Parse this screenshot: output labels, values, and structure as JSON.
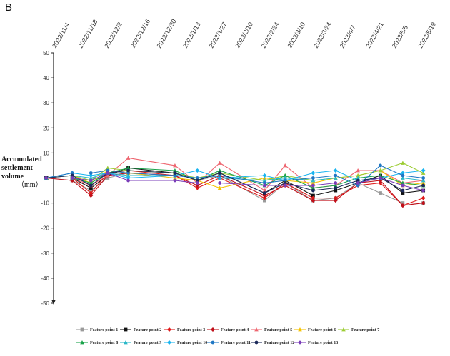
{
  "figure": {
    "panel_letter": "B",
    "ylabel_line1": "Accumulated",
    "ylabel_line2": "settlement volume",
    "ylabel_unit": "（mm）"
  },
  "chart_data": {
    "type": "line",
    "title": "",
    "xlabel": "",
    "ylabel": "Accumulated settlement volume (mm)",
    "ylim": [
      -50,
      50
    ],
    "yticks": [
      50,
      40,
      30,
      20,
      10,
      0,
      -10,
      -20,
      -30,
      -40,
      -50
    ],
    "grid": false,
    "legend_position": "bottom",
    "tick_labels": [
      "2022/11/4",
      "2022/11/18",
      "2022/12/2",
      "2022/12/16",
      "2022/12/30",
      "2023/1/13",
      "2023/1/27",
      "2023/2/10",
      "2023/2/24",
      "2023/3/10",
      "2023/3/24",
      "2023/4/7",
      "2023/4/21",
      "2023/5/5",
      "2023/5/19"
    ],
    "x_range": [
      "2022-11-04",
      "2023-06-02"
    ],
    "series": [
      {
        "name": "Feature point 1",
        "color": "#9a9a9a",
        "marker": "square",
        "points": [
          [
            "2022-10-31",
            0
          ],
          [
            "2022-11-14",
            -1
          ],
          [
            "2022-11-24",
            -5
          ],
          [
            "2022-12-03",
            0
          ],
          [
            "2022-12-14",
            2
          ],
          [
            "2023-01-08",
            2
          ],
          [
            "2023-01-20",
            -1
          ],
          [
            "2023-02-01",
            1
          ],
          [
            "2023-02-25",
            -9
          ],
          [
            "2023-03-08",
            -2
          ],
          [
            "2023-03-23",
            -9
          ],
          [
            "2023-04-04",
            -8
          ],
          [
            "2023-04-16",
            -2
          ],
          [
            "2023-04-28",
            -6
          ],
          [
            "2023-05-10",
            -10
          ],
          [
            "2023-05-21",
            -10
          ]
        ]
      },
      {
        "name": "Feature point 2",
        "color": "#111111",
        "marker": "square",
        "points": [
          [
            "2022-10-31",
            0
          ],
          [
            "2022-11-14",
            0
          ],
          [
            "2022-11-24",
            -4
          ],
          [
            "2022-12-03",
            1
          ],
          [
            "2022-12-14",
            4
          ],
          [
            "2023-01-08",
            2
          ],
          [
            "2023-01-20",
            -1
          ],
          [
            "2023-02-01",
            2
          ],
          [
            "2023-02-25",
            -6
          ],
          [
            "2023-03-08",
            -1
          ],
          [
            "2023-03-23",
            -7
          ],
          [
            "2023-04-04",
            -5
          ],
          [
            "2023-04-16",
            -2
          ],
          [
            "2023-04-28",
            1
          ],
          [
            "2023-05-10",
            -6
          ],
          [
            "2023-05-21",
            -5
          ]
        ]
      },
      {
        "name": "Feature point 3",
        "color": "#e01818",
        "marker": "diamond",
        "points": [
          [
            "2022-10-31",
            0
          ],
          [
            "2022-11-14",
            0
          ],
          [
            "2022-11-24",
            -6
          ],
          [
            "2022-12-03",
            2
          ],
          [
            "2022-12-14",
            3
          ],
          [
            "2023-01-08",
            1
          ],
          [
            "2023-01-20",
            -4
          ],
          [
            "2023-02-01",
            0
          ],
          [
            "2023-02-25",
            -8
          ],
          [
            "2023-03-08",
            -2
          ],
          [
            "2023-03-23",
            -8
          ],
          [
            "2023-04-04",
            -8
          ],
          [
            "2023-04-16",
            -3
          ],
          [
            "2023-04-28",
            -2
          ],
          [
            "2023-05-10",
            -11
          ],
          [
            "2023-05-21",
            -8
          ]
        ]
      },
      {
        "name": "Feature point 4",
        "color": "#c0101a",
        "marker": "diamond",
        "points": [
          [
            "2022-10-31",
            0
          ],
          [
            "2022-11-14",
            -1
          ],
          [
            "2022-11-24",
            -7
          ],
          [
            "2022-12-03",
            1
          ],
          [
            "2022-12-14",
            2
          ],
          [
            "2023-01-08",
            1
          ],
          [
            "2023-01-20",
            -3
          ],
          [
            "2023-02-01",
            1
          ],
          [
            "2023-02-25",
            -7
          ],
          [
            "2023-03-08",
            -3
          ],
          [
            "2023-03-23",
            -9
          ],
          [
            "2023-04-04",
            -9
          ],
          [
            "2023-04-16",
            -2
          ],
          [
            "2023-04-28",
            -1
          ],
          [
            "2023-05-10",
            -11
          ],
          [
            "2023-05-21",
            -10
          ]
        ]
      },
      {
        "name": "Feature point 5",
        "color": "#ee6670",
        "marker": "triangle",
        "points": [
          [
            "2022-10-31",
            0
          ],
          [
            "2022-11-14",
            0
          ],
          [
            "2022-11-24",
            -3
          ],
          [
            "2022-12-03",
            1
          ],
          [
            "2022-12-14",
            8
          ],
          [
            "2023-01-08",
            5
          ],
          [
            "2023-01-20",
            -2
          ],
          [
            "2023-02-01",
            6
          ],
          [
            "2023-02-25",
            -5
          ],
          [
            "2023-03-08",
            5
          ],
          [
            "2023-03-23",
            -4
          ],
          [
            "2023-04-04",
            -3
          ],
          [
            "2023-04-16",
            3
          ],
          [
            "2023-04-28",
            3
          ],
          [
            "2023-05-10",
            -2
          ],
          [
            "2023-05-21",
            -1
          ]
        ]
      },
      {
        "name": "Feature point 6",
        "color": "#f5c200",
        "marker": "triangle",
        "points": [
          [
            "2022-10-31",
            0
          ],
          [
            "2022-11-14",
            1
          ],
          [
            "2022-11-24",
            -2
          ],
          [
            "2022-12-03",
            3
          ],
          [
            "2022-12-14",
            2
          ],
          [
            "2023-01-08",
            0
          ],
          [
            "2023-01-20",
            -1
          ],
          [
            "2023-02-01",
            -4
          ],
          [
            "2023-02-25",
            0
          ],
          [
            "2023-03-08",
            -1
          ],
          [
            "2023-03-23",
            -2
          ],
          [
            "2023-04-04",
            0
          ],
          [
            "2023-04-16",
            1
          ],
          [
            "2023-04-28",
            3
          ],
          [
            "2023-05-10",
            -3
          ],
          [
            "2023-05-21",
            -2
          ]
        ]
      },
      {
        "name": "Feature point 7",
        "color": "#9ccc33",
        "marker": "triangle",
        "points": [
          [
            "2022-10-31",
            0
          ],
          [
            "2022-11-14",
            1
          ],
          [
            "2022-11-24",
            -1
          ],
          [
            "2022-12-03",
            4
          ],
          [
            "2022-12-14",
            3
          ],
          [
            "2023-01-08",
            2
          ],
          [
            "2023-01-20",
            0
          ],
          [
            "2023-02-01",
            2
          ],
          [
            "2023-02-25",
            -1
          ],
          [
            "2023-03-08",
            1
          ],
          [
            "2023-03-23",
            -1
          ],
          [
            "2023-04-04",
            0
          ],
          [
            "2023-04-16",
            1
          ],
          [
            "2023-04-28",
            3
          ],
          [
            "2023-05-10",
            6
          ],
          [
            "2023-05-21",
            2
          ]
        ]
      },
      {
        "name": "Feature point 8",
        "color": "#1aa34a",
        "marker": "triangle",
        "points": [
          [
            "2022-10-31",
            0
          ],
          [
            "2022-11-14",
            0
          ],
          [
            "2022-11-24",
            -2
          ],
          [
            "2022-12-03",
            2
          ],
          [
            "2022-12-14",
            4
          ],
          [
            "2023-01-08",
            3
          ],
          [
            "2023-01-20",
            -1
          ],
          [
            "2023-02-01",
            3
          ],
          [
            "2023-02-25",
            -3
          ],
          [
            "2023-03-08",
            1
          ],
          [
            "2023-03-23",
            -4
          ],
          [
            "2023-04-04",
            -3
          ],
          [
            "2023-04-16",
            0
          ],
          [
            "2023-04-28",
            1
          ],
          [
            "2023-05-10",
            -2
          ],
          [
            "2023-05-21",
            -3
          ]
        ]
      },
      {
        "name": "Feature point 9",
        "color": "#2bb8c8",
        "marker": "triangle",
        "points": [
          [
            "2022-10-31",
            0
          ],
          [
            "2022-11-14",
            1
          ],
          [
            "2022-11-24",
            0
          ],
          [
            "2022-12-03",
            2
          ],
          [
            "2022-12-14",
            1
          ],
          [
            "2023-01-08",
            1
          ],
          [
            "2023-01-20",
            0
          ],
          [
            "2023-02-01",
            0
          ],
          [
            "2023-02-25",
            -1
          ],
          [
            "2023-03-08",
            0
          ],
          [
            "2023-03-23",
            -1
          ],
          [
            "2023-04-04",
            0
          ],
          [
            "2023-04-16",
            0
          ],
          [
            "2023-04-28",
            0
          ],
          [
            "2023-05-10",
            0
          ],
          [
            "2023-05-21",
            -1
          ]
        ]
      },
      {
        "name": "Feature point 10",
        "color": "#18b4f0",
        "marker": "diamond",
        "points": [
          [
            "2022-10-31",
            0
          ],
          [
            "2022-11-14",
            2
          ],
          [
            "2022-11-24",
            1
          ],
          [
            "2022-12-03",
            2
          ],
          [
            "2022-12-14",
            0
          ],
          [
            "2023-01-08",
            1
          ],
          [
            "2023-01-20",
            3
          ],
          [
            "2023-02-01",
            0
          ],
          [
            "2023-02-25",
            1
          ],
          [
            "2023-03-08",
            -1
          ],
          [
            "2023-03-23",
            2
          ],
          [
            "2023-04-04",
            3
          ],
          [
            "2023-04-16",
            -1
          ],
          [
            "2023-04-28",
            0
          ],
          [
            "2023-05-10",
            2
          ],
          [
            "2023-05-21",
            3
          ]
        ]
      },
      {
        "name": "Feature point 11",
        "color": "#1f77c4",
        "marker": "circle",
        "points": [
          [
            "2022-10-31",
            0
          ],
          [
            "2022-11-14",
            2
          ],
          [
            "2022-11-24",
            2
          ],
          [
            "2022-12-03",
            3
          ],
          [
            "2022-12-14",
            2
          ],
          [
            "2023-01-08",
            1
          ],
          [
            "2023-01-20",
            0
          ],
          [
            "2023-02-01",
            1
          ],
          [
            "2023-02-25",
            -2
          ],
          [
            "2023-03-08",
            -1
          ],
          [
            "2023-03-23",
            0
          ],
          [
            "2023-04-04",
            1
          ],
          [
            "2023-04-16",
            -3
          ],
          [
            "2023-04-28",
            5
          ],
          [
            "2023-05-10",
            1
          ],
          [
            "2023-05-21",
            0
          ]
        ]
      },
      {
        "name": "Feature point 12",
        "color": "#1c2a5a",
        "marker": "circle",
        "points": [
          [
            "2022-10-31",
            0
          ],
          [
            "2022-11-14",
            1
          ],
          [
            "2022-11-24",
            -3
          ],
          [
            "2022-12-03",
            2
          ],
          [
            "2022-12-14",
            3
          ],
          [
            "2023-01-08",
            2
          ],
          [
            "2023-01-20",
            -1
          ],
          [
            "2023-02-01",
            2
          ],
          [
            "2023-02-25",
            -6
          ],
          [
            "2023-03-08",
            -2
          ],
          [
            "2023-03-23",
            -5
          ],
          [
            "2023-04-04",
            -4
          ],
          [
            "2023-04-16",
            -1
          ],
          [
            "2023-04-28",
            0
          ],
          [
            "2023-05-10",
            -5
          ],
          [
            "2023-05-21",
            -3
          ]
        ]
      },
      {
        "name": "Feature point 13",
        "color": "#7a3db8",
        "marker": "circle",
        "points": [
          [
            "2022-10-31",
            0
          ],
          [
            "2022-11-14",
            0
          ],
          [
            "2022-11-24",
            -1
          ],
          [
            "2022-12-03",
            2
          ],
          [
            "2022-12-14",
            -1
          ],
          [
            "2023-01-08",
            -1
          ],
          [
            "2023-01-20",
            -2
          ],
          [
            "2023-02-01",
            -2
          ],
          [
            "2023-02-25",
            -3
          ],
          [
            "2023-03-08",
            -3
          ],
          [
            "2023-03-23",
            -3
          ],
          [
            "2023-04-04",
            -2
          ],
          [
            "2023-04-16",
            -2
          ],
          [
            "2023-04-28",
            0
          ],
          [
            "2023-05-10",
            -3
          ],
          [
            "2023-05-21",
            -5
          ]
        ]
      }
    ]
  }
}
